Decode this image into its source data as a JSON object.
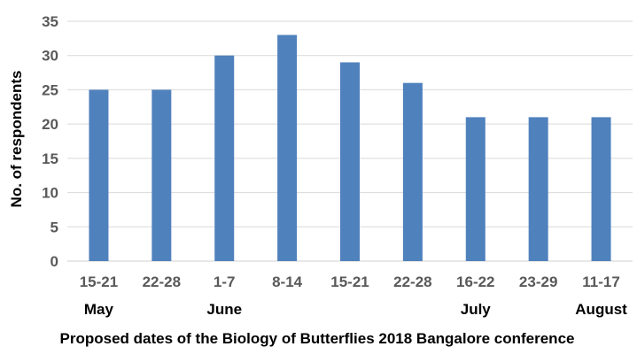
{
  "chart_data": {
    "type": "bar",
    "categories": [
      "15-21",
      "22-28",
      "1-7",
      "8-14",
      "15-21",
      "22-28",
      "16-22",
      "23-29",
      "11-17"
    ],
    "month_labels": [
      "May",
      "",
      "June",
      "",
      "",
      "",
      "July",
      "",
      "August"
    ],
    "values": [
      25,
      25,
      30,
      33,
      29,
      26,
      21,
      21,
      21
    ],
    "xlabel": "Proposed dates of the Biology of Butterflies 2018 Bangalore conference",
    "ylabel": "No. of respondents",
    "ylim": [
      0,
      35
    ],
    "yticks": [
      0,
      5,
      10,
      15,
      20,
      25,
      30,
      35
    ],
    "grid": true,
    "legend": "none",
    "bar_color": "#4f81bd"
  }
}
